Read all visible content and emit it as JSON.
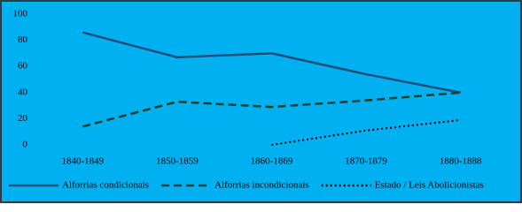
{
  "chart_data": {
    "type": "line",
    "categories": [
      "1840-1849",
      "1850-1859",
      "1860-1869",
      "1870-1879",
      "1880-1888"
    ],
    "series": [
      {
        "name": "Alforrias condicionais",
        "color": "#1f4e79",
        "dash": "solid",
        "values": [
          86,
          67,
          70,
          54,
          40
        ]
      },
      {
        "name": "Alforrias incondicionais",
        "color": "#17402a",
        "dash": "dashed",
        "values": [
          14,
          33,
          29,
          34,
          40
        ]
      },
      {
        "name": "Estado / Leis Abolicionistas",
        "color": "#000000",
        "dash": "dotted",
        "values": [
          null,
          null,
          0,
          11,
          19
        ]
      }
    ],
    "ylim": [
      0,
      100
    ],
    "yticks": [
      0,
      20,
      40,
      60,
      80,
      100
    ],
    "grid": false,
    "legend": "bottom"
  }
}
